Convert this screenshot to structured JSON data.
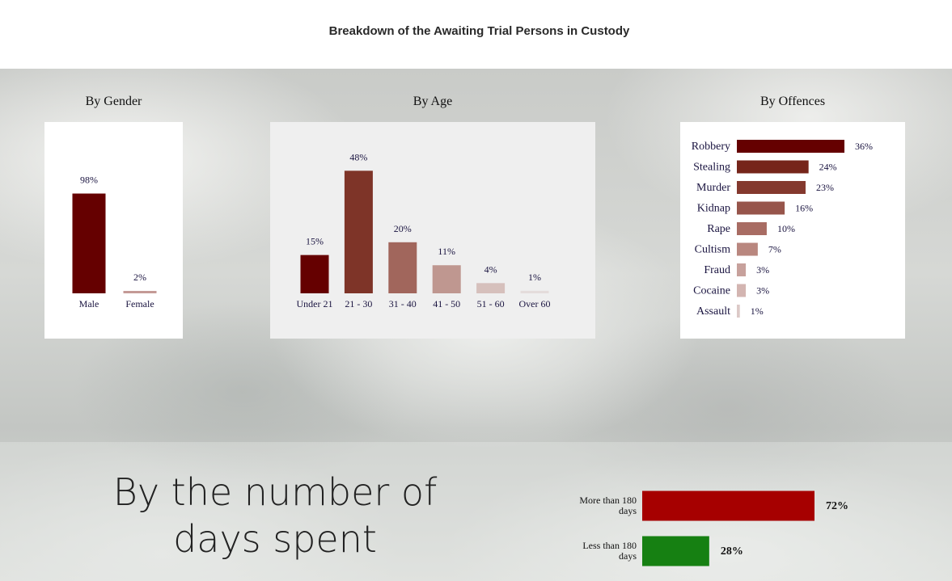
{
  "header": {
    "title": "Breakdown of the Awaiting Trial Persons in Custody"
  },
  "sections": {
    "gender": "By Gender",
    "age": "By Age",
    "offences": "By Offences",
    "days": "By the number of days spent"
  },
  "chart_data": [
    {
      "id": "gender",
      "type": "bar",
      "title": "By Gender",
      "categories": [
        "Male",
        "Female"
      ],
      "values": [
        98,
        2
      ],
      "labels": [
        "98%",
        "2%"
      ],
      "colors": [
        "#650000",
        "#c49a96"
      ],
      "ylim": [
        0,
        100
      ]
    },
    {
      "id": "age",
      "type": "bar",
      "title": "By Age",
      "categories": [
        "Under 21",
        "21 - 30",
        "31 - 40",
        "41 - 50",
        "51 - 60",
        "Over 60"
      ],
      "values": [
        15,
        48,
        20,
        11,
        4,
        1
      ],
      "labels": [
        "15%",
        "48%",
        "20%",
        "11%",
        "4%",
        "1%"
      ],
      "colors": [
        "#650000",
        "#7e3428",
        "#a1665c",
        "#bf9790",
        "#d6c0bc",
        "#e4dcdb"
      ],
      "ylim": [
        0,
        50
      ]
    },
    {
      "id": "offences",
      "type": "bar",
      "orientation": "horizontal",
      "title": "By Offences",
      "categories": [
        "Robbery",
        "Stealing",
        "Murder",
        "Kidnap",
        "Rape",
        "Cultism",
        "Fraud",
        "Cocaine",
        "Assault"
      ],
      "values": [
        36,
        24,
        23,
        16,
        10,
        7,
        3,
        3,
        1
      ],
      "labels": [
        "36%",
        "24%",
        "23%",
        "16%",
        "10%",
        "7%",
        "3%",
        "3%",
        "1%"
      ],
      "colors": [
        "#650000",
        "#76251a",
        "#84392e",
        "#97554b",
        "#a86c63",
        "#b9877f",
        "#c7a19c",
        "#d3b5b1",
        "#dcc9c7"
      ],
      "xlim": [
        0,
        36
      ]
    },
    {
      "id": "days",
      "type": "bar",
      "orientation": "horizontal",
      "title": "By the number of days spent",
      "categories": [
        "More than 180 days",
        "Less than 180 days"
      ],
      "values": [
        72,
        28
      ],
      "labels": [
        "72%",
        "28%"
      ],
      "colors": [
        "#a60000",
        "#168012"
      ],
      "xlim": [
        0,
        72
      ]
    }
  ]
}
